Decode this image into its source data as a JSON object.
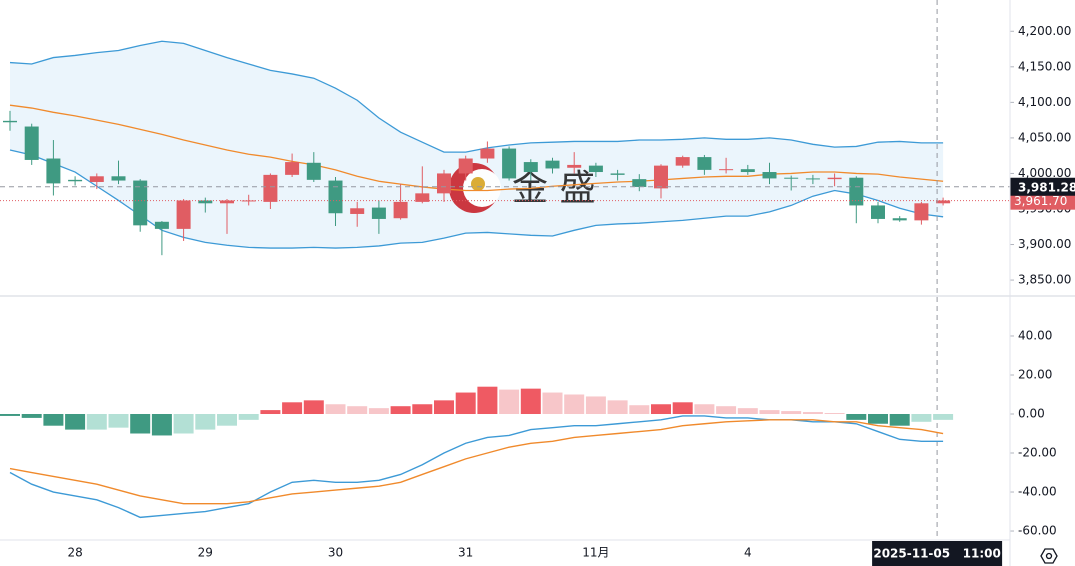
{
  "chart_data": [
    {
      "type": "candlestick",
      "categories": [
        null,
        null,
        null,
        "28",
        null,
        null,
        null,
        null,
        null,
        "29",
        null,
        null,
        null,
        null,
        null,
        "30",
        null,
        null,
        null,
        null,
        null,
        "31",
        null,
        null,
        null,
        null,
        null,
        "11月",
        null,
        null,
        null,
        null,
        null,
        null,
        "4",
        null,
        null,
        null,
        null,
        null,
        null,
        null,
        null,
        null
      ],
      "open": [
        4074,
        4066,
        4021,
        3991,
        3988,
        3996,
        3990,
        3932,
        3922,
        3962,
        3958,
        3961,
        3960,
        3998,
        4015,
        3990,
        3943,
        3952,
        3937,
        3960,
        3972,
        4000,
        4021,
        4035,
        4016,
        4018,
        4008,
        4011,
        4000,
        3992,
        3979,
        4011,
        4023,
        4005,
        4006,
        4002,
        3994,
        3993,
        3992,
        3994,
        3955,
        3937,
        3934,
        3958
      ],
      "high": [
        4088,
        4070,
        4047,
        3996,
        4000,
        4018,
        3992,
        3933,
        3964,
        3966,
        3964,
        3970,
        4000,
        4028,
        4030,
        3995,
        3960,
        3962,
        3985,
        4010,
        4005,
        4025,
        4045,
        4038,
        4020,
        4022,
        4030,
        4015,
        4005,
        3999,
        4013,
        4025,
        4026,
        4022,
        4012,
        4015,
        3997,
        3998,
        4000,
        3996,
        3960,
        3940,
        3960,
        3966
      ],
      "low": [
        4060,
        4012,
        3969,
        3983,
        3978,
        3985,
        3918,
        3885,
        3905,
        3945,
        3915,
        3955,
        3950,
        3995,
        3988,
        3926,
        3925,
        3915,
        3935,
        3958,
        3960,
        3990,
        4015,
        3990,
        3990,
        4000,
        4000,
        3995,
        3990,
        3975,
        3965,
        4008,
        3998,
        4000,
        3998,
        3985,
        3976,
        3985,
        3982,
        3930,
        3930,
        3932,
        3928,
        3955
      ],
      "close": [
        4072,
        4019,
        3986,
        3989,
        3996,
        3990,
        3927,
        3922,
        3962,
        3958,
        3962,
        3962,
        3998,
        4016,
        3991,
        3944,
        3951,
        3936,
        3960,
        3972,
        4000,
        4021,
        4035,
        3993,
        4002,
        4007,
        4012,
        4002,
        3998,
        3981,
        4011,
        4023,
        4005,
        4006,
        4002,
        3993,
        3993,
        3992,
        3994,
        3955,
        3936,
        3934,
        3958,
        3962
      ],
      "up_color": "#e05d63",
      "down_color": "#3f9a82",
      "lines": [
        {
          "color": "#3d9ad6",
          "values": [
            4156,
            4154,
            4163,
            4166,
            4170,
            4173,
            4180,
            4186,
            4183,
            4173,
            4163,
            4154,
            4145,
            4140,
            4134,
            4120,
            4103,
            4078,
            4058,
            4044,
            4030,
            4030,
            4036,
            4040,
            4043,
            4044,
            4045,
            4045,
            4045,
            4047,
            4047,
            4048,
            4050,
            4048,
            4048,
            4050,
            4047,
            4041,
            4037,
            4038,
            4044,
            4045,
            4043,
            4043
          ]
        },
        {
          "color": "#f08a2c",
          "values": [
            4096,
            4092,
            4086,
            4081,
            4075,
            4069,
            4062,
            4055,
            4047,
            4040,
            4033,
            4027,
            4023,
            4017,
            4012,
            4005,
            3996,
            3989,
            3985,
            3981,
            3978,
            3976,
            3976,
            3978,
            3979,
            3982,
            3984,
            3986,
            3988,
            3989,
            3991,
            3993,
            3995,
            3996,
            3996,
            3999,
            4000,
            4002,
            4002,
            4000,
            3999,
            3995,
            3992,
            3989
          ]
        },
        {
          "color": "#3d9ad6",
          "values": [
            4033,
            4026,
            4014,
            4002,
            3982,
            3962,
            3941,
            3920,
            3910,
            3903,
            3899,
            3896,
            3895,
            3895,
            3896,
            3895,
            3896,
            3898,
            3902,
            3903,
            3909,
            3916,
            3917,
            3915,
            3913,
            3912,
            3920,
            3927,
            3929,
            3930,
            3932,
            3934,
            3937,
            3940,
            3940,
            3946,
            3955,
            3968,
            3976,
            3971,
            3962,
            3951,
            3943,
            3939
          ]
        }
      ],
      "band_fill": "#e6f2fb",
      "ylim": [
        3829,
        4244
      ],
      "yticks": [
        {
          "value": 3850,
          "label": "3,850.00"
        },
        {
          "value": 3900,
          "label": "3,900.00"
        },
        {
          "value": 3950,
          "label": "3,950.00"
        },
        {
          "value": 4000,
          "label": "4,000.00"
        },
        {
          "value": 4050,
          "label": "4,050.00"
        },
        {
          "value": 4100,
          "label": "4,100.00"
        },
        {
          "value": 4150,
          "label": "4,150.00"
        },
        {
          "value": 4200,
          "label": "4,200.00"
        }
      ],
      "current_price": {
        "value": 3961.7,
        "label": "3,961.70"
      },
      "crosshair_price": {
        "value": 3981.28,
        "label": "3,981.28"
      },
      "crosshair_time": "2025-11-05   11:00",
      "watermark": "金 盛"
    },
    {
      "type": "macd",
      "histogram": [
        -1,
        -2,
        -6,
        -8,
        -8,
        -7,
        -10,
        -11,
        -10,
        -8,
        -6,
        -3,
        2,
        6,
        7,
        5,
        4,
        3,
        4,
        5,
        7,
        11,
        14,
        12.5,
        13,
        11,
        10,
        9,
        7,
        4.5,
        5,
        6,
        5,
        4,
        3,
        2,
        1.5,
        1,
        0.5,
        -3,
        -5,
        -6,
        -4,
        -3
      ],
      "up_color": "#ef5a63",
      "up_fade_color": "#f7c6c9",
      "down_color": "#3f9a82",
      "down_fade_color": "#b3e0d5",
      "lines": [
        {
          "color": "#3d9ad6",
          "values": [
            -30,
            -36,
            -40,
            -42,
            -44,
            -48,
            -53,
            -52,
            -51,
            -50,
            -48,
            -46,
            -40,
            -35,
            -34,
            -35,
            -35,
            -34,
            -31,
            -26,
            -20,
            -15,
            -12,
            -11,
            -8,
            -7,
            -6,
            -6,
            -5,
            -4,
            -3,
            -1,
            -1,
            -2,
            -2,
            -3,
            -3,
            -4,
            -4,
            -5,
            -9,
            -13,
            -14,
            -14
          ]
        },
        {
          "color": "#f08a2c",
          "values": [
            -28,
            -30,
            -32,
            -34,
            -36,
            -39,
            -42,
            -44,
            -46,
            -46,
            -46,
            -45,
            -43,
            -41,
            -40,
            -39,
            -38,
            -37,
            -35,
            -31,
            -27,
            -23,
            -20,
            -17,
            -15,
            -14,
            -12,
            -11,
            -10,
            -9,
            -8,
            -6,
            -5,
            -4,
            -3.5,
            -3,
            -3,
            -3,
            -4,
            -4,
            -6,
            -7,
            -8,
            -10
          ]
        }
      ],
      "ylim": [
        -64.6,
        60.5
      ],
      "yticks": [
        {
          "value": -60,
          "label": "-60.00"
        },
        {
          "value": -40,
          "label": "-40.00"
        },
        {
          "value": -20,
          "label": "-20.00"
        },
        {
          "value": 0,
          "label": "0.00"
        },
        {
          "value": 20,
          "label": "20.00"
        },
        {
          "value": 40,
          "label": "40.00"
        }
      ]
    }
  ]
}
